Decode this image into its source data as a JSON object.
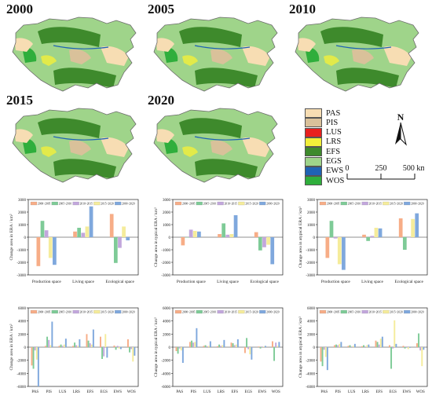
{
  "maps": {
    "years": [
      "2000",
      "2005",
      "2010",
      "2015",
      "2020"
    ]
  },
  "legend": {
    "items": [
      {
        "code": "PAS",
        "color": "#f7ddb3"
      },
      {
        "code": "PIS",
        "color": "#d9c19a"
      },
      {
        "code": "LUS",
        "color": "#e8201e"
      },
      {
        "code": "LRS",
        "color": "#f2ef3a"
      },
      {
        "code": "EFS",
        "color": "#3e8a2c"
      },
      {
        "code": "EGS",
        "color": "#9fd48a"
      },
      {
        "code": "EWS",
        "color": "#1f63b4"
      },
      {
        "code": "WOS",
        "color": "#2fae3c"
      }
    ]
  },
  "scale": {
    "ticks": [
      "0",
      "250",
      "500 km"
    ]
  },
  "north": {
    "label": "N"
  },
  "period_colors": [
    "#f7ad87",
    "#7ecb97",
    "#c2a7dc",
    "#f5ec9b",
    "#7fa8dd"
  ],
  "chart_data": [
    {
      "type": "bar",
      "legend": [
        "2000~2005",
        "2005~2010",
        "2010~2015",
        "2015~2020",
        "2000~2020"
      ],
      "categories": [
        "Production space",
        "Living space",
        "Ecological space"
      ],
      "ylabel": "Change area in ERA / km²",
      "ylim": [
        -3000,
        3000
      ],
      "yticks": [
        -3000,
        -2000,
        -1000,
        0,
        1000,
        2000,
        3000
      ],
      "series": [
        {
          "name": "2000~2005",
          "values": [
            -2300,
            450,
            1850
          ]
        },
        {
          "name": "2005~2010",
          "values": [
            1300,
            750,
            -2050
          ]
        },
        {
          "name": "2010~2015",
          "values": [
            550,
            350,
            -850
          ]
        },
        {
          "name": "2015~2020",
          "values": [
            -1650,
            850,
            850
          ]
        },
        {
          "name": "2000~2020",
          "values": [
            -2200,
            2450,
            -250
          ]
        }
      ]
    },
    {
      "type": "bar",
      "legend": [
        "2000~2005",
        "2005~2010",
        "2010~2015",
        "2015~2020",
        "2000~2020"
      ],
      "categories": [
        "Production space",
        "Living space",
        "Ecological space"
      ],
      "ylabel": "Change area in typical ERA / km²",
      "ylim": [
        -3000,
        3000
      ],
      "yticks": [
        -3000,
        -2000,
        -1000,
        0,
        1000,
        2000,
        3000
      ],
      "series": [
        {
          "name": "2000~2005",
          "values": [
            -650,
            250,
            400
          ]
        },
        {
          "name": "2005~2010",
          "values": [
            0,
            1100,
            -1050
          ]
        },
        {
          "name": "2010~2015",
          "values": [
            600,
            200,
            -800
          ]
        },
        {
          "name": "2015~2020",
          "values": [
            500,
            250,
            -600
          ]
        },
        {
          "name": "2000~2020",
          "values": [
            450,
            1750,
            -2150
          ]
        }
      ]
    },
    {
      "type": "bar",
      "legend": [
        "2000~2005",
        "2005~2010",
        "2010~2015",
        "2015~2020",
        "2000~2020"
      ],
      "categories": [
        "Production space",
        "Living space",
        "Ecological space"
      ],
      "ylabel": "Change area in atypical ERA / km²",
      "ylim": [
        -3000,
        3000
      ],
      "yticks": [
        -3000,
        -2000,
        -1000,
        0,
        1000,
        2000,
        3000
      ],
      "series": [
        {
          "name": "2000~2005",
          "values": [
            -1650,
            200,
            1500
          ]
        },
        {
          "name": "2005~2010",
          "values": [
            1300,
            -300,
            -1000
          ]
        },
        {
          "name": "2010~2015",
          "values": [
            -100,
            100,
            0
          ]
        },
        {
          "name": "2015~2020",
          "values": [
            -2150,
            750,
            1450
          ]
        },
        {
          "name": "2000~2020",
          "values": [
            -2600,
            700,
            1900
          ]
        }
      ]
    },
    {
      "type": "bar",
      "legend": [
        "2000~2005",
        "2005~2010",
        "2010~2015",
        "2015~2020",
        "2000~2020"
      ],
      "categories": [
        "PAS",
        "PIS",
        "LUS",
        "LRS",
        "EFS",
        "EGS",
        "EWS",
        "WOS"
      ],
      "ylabel": "Change area in ERA / km²",
      "ylim": [
        -6000,
        6000
      ],
      "yticks": [
        -6000,
        -4000,
        -2000,
        0,
        2000,
        4000,
        6000
      ],
      "series": [
        {
          "name": "2000~2005",
          "values": [
            -2800,
            200,
            200,
            200,
            2000,
            1600,
            250,
            1200
          ]
        },
        {
          "name": "2005~2010",
          "values": [
            -3300,
            1600,
            400,
            700,
            1000,
            -1800,
            -400,
            -800
          ]
        },
        {
          "name": "2010~2015",
          "values": [
            -500,
            1100,
            200,
            300,
            600,
            -1400,
            200,
            -300
          ]
        },
        {
          "name": "2015~2020",
          "values": [
            -1900,
            300,
            400,
            200,
            400,
            2000,
            -200,
            -2200
          ]
        },
        {
          "name": "2000~2020",
          "values": [
            -6000,
            3900,
            1300,
            1200,
            2700,
            -1600,
            -300,
            -1300
          ]
        }
      ]
    },
    {
      "type": "bar",
      "legend": [
        "2000~2005",
        "2005~2010",
        "2010~2015",
        "2015~2020",
        "2000~2020"
      ],
      "categories": [
        "PAS",
        "PIS",
        "LUS",
        "LRS",
        "EFS",
        "EGS",
        "EWS",
        "WOS"
      ],
      "ylabel": "Change area in typical ERA / km²",
      "ylim": [
        -6000,
        6000
      ],
      "yticks": [
        -6000,
        -4000,
        -2000,
        0,
        2000,
        4000,
        6000
      ],
      "series": [
        {
          "name": "2000~2005",
          "values": [
            -600,
            800,
            200,
            150,
            700,
            -900,
            100,
            900
          ]
        },
        {
          "name": "2005~2010",
          "values": [
            -1000,
            1000,
            300,
            400,
            600,
            1400,
            -200,
            -2100
          ]
        },
        {
          "name": "2010~2015",
          "values": [
            -200,
            700,
            150,
            200,
            300,
            -300,
            100,
            700
          ]
        },
        {
          "name": "2015~2020",
          "values": [
            -500,
            800,
            200,
            300,
            400,
            -1100,
            100,
            200
          ]
        },
        {
          "name": "2000~2020",
          "values": [
            -2400,
            2900,
            900,
            1100,
            1200,
            -1900,
            200,
            800
          ]
        }
      ]
    },
    {
      "type": "bar",
      "legend": [
        "2000~2005",
        "2005~2010",
        "2010~2015",
        "2015~2020",
        "2000~2020"
      ],
      "categories": [
        "PAS",
        "PIS",
        "LUS",
        "LRS",
        "EFS",
        "EGS",
        "EWS",
        "WOS"
      ],
      "ylabel": "Change area in atypical ERA / km²",
      "ylim": [
        -6000,
        6000
      ],
      "yticks": [
        -6000,
        -4000,
        -2000,
        0,
        2000,
        4000,
        6000
      ],
      "series": [
        {
          "name": "2000~2005",
          "values": [
            -2200,
            300,
            200,
            150,
            1000,
            300,
            200,
            600
          ]
        },
        {
          "name": "2005~2010",
          "values": [
            -2900,
            400,
            300,
            300,
            800,
            -3300,
            -200,
            2100
          ]
        },
        {
          "name": "2010~2015",
          "values": [
            -400,
            300,
            100,
            100,
            400,
            -200,
            100,
            -500
          ]
        },
        {
          "name": "2015~2020",
          "values": [
            -1500,
            500,
            200,
            300,
            1300,
            4100,
            -300,
            -2900
          ]
        },
        {
          "name": "2000~2020",
          "values": [
            -3500,
            800,
            500,
            400,
            1600,
            500,
            -100,
            -400
          ]
        }
      ]
    }
  ]
}
